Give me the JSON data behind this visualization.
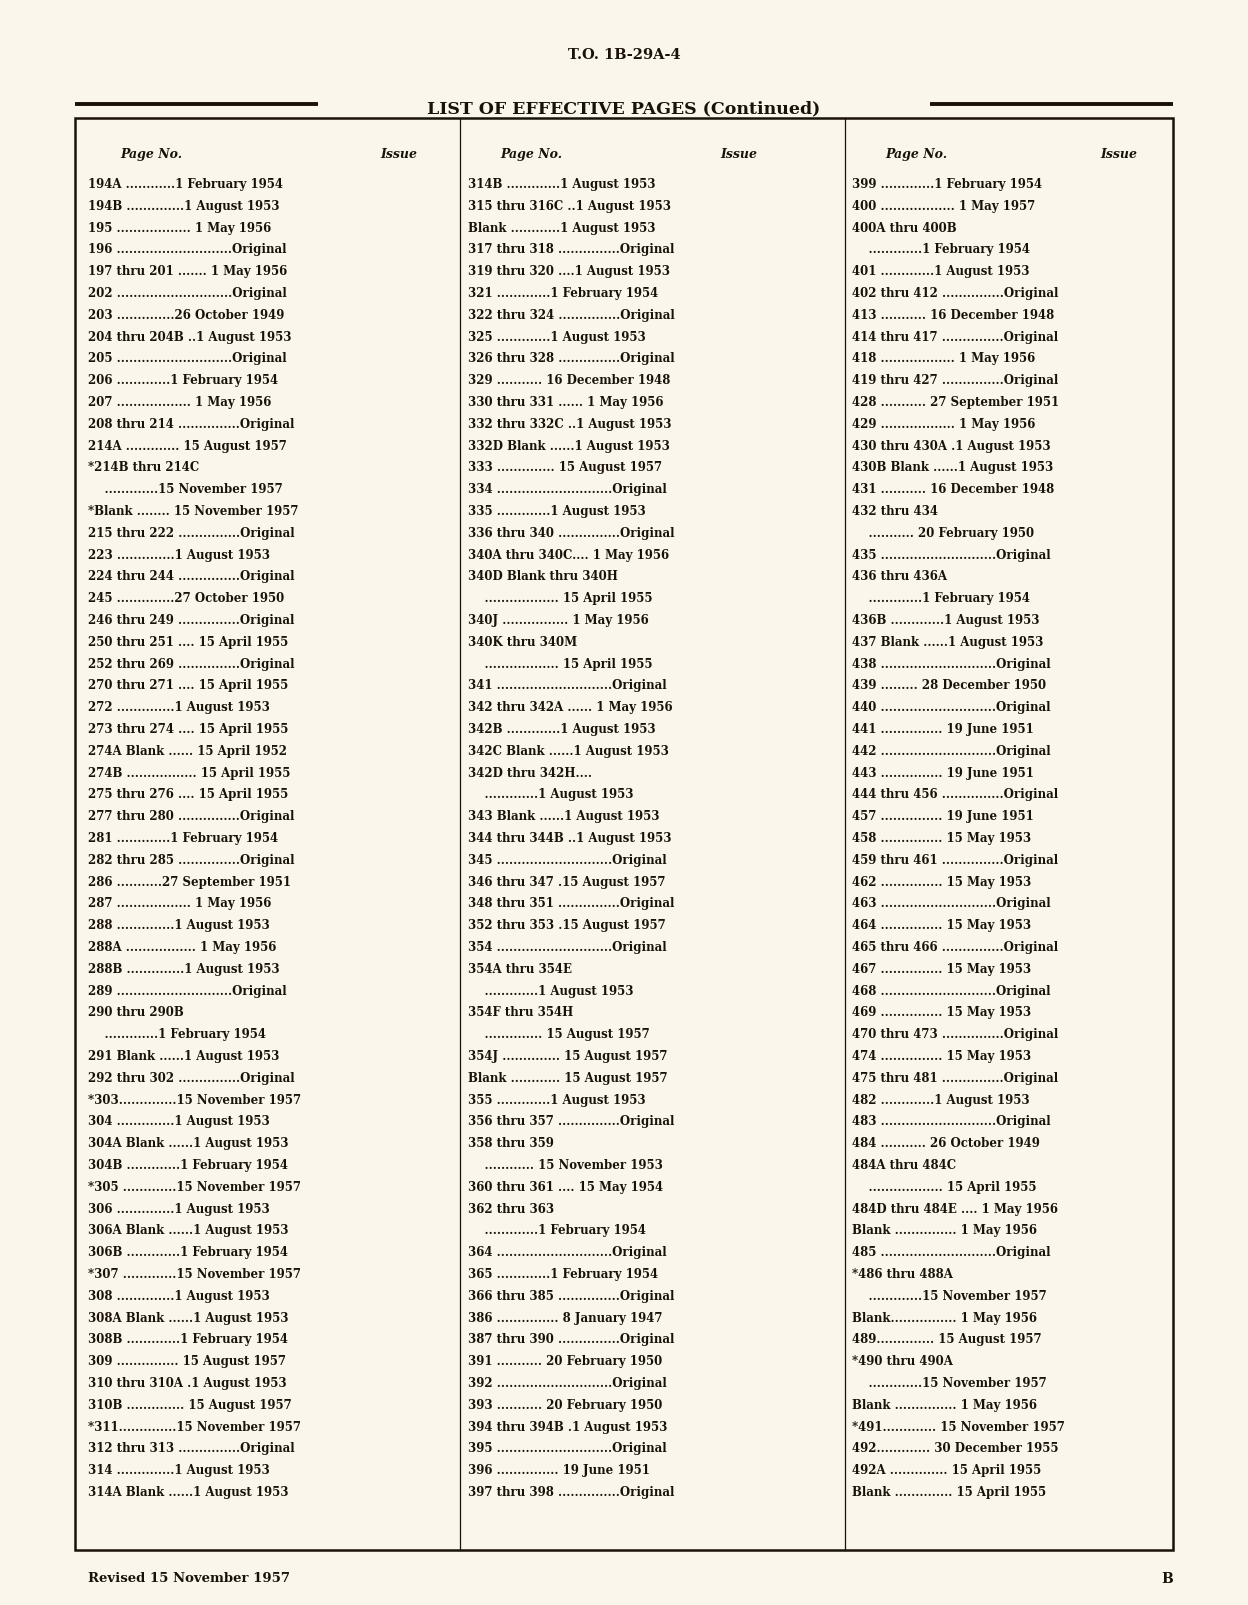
{
  "bg_color": "#faf6ec",
  "top_label": "T.O. 1B-29A-4",
  "title": "LIST OF EFFECTIVE PAGES (Continued)",
  "bottom_left": "Revised 15 November 1957",
  "bottom_right": "B",
  "col1_entries": [
    "194A ............1 February 1954",
    "194B ..............1 August 1953",
    "195 .................. 1 May 1956",
    "196 ............................Original",
    "197 thru 201 ....... 1 May 1956",
    "202 ............................Original",
    "203 ..............26 October 1949",
    "204 thru 204B ..1 August 1953",
    "205 ............................Original",
    "206 .............1 February 1954",
    "207 .................. 1 May 1956",
    "208 thru 214 ...............Original",
    "214A ............. 15 August 1957",
    "*214B thru 214C",
    "    .............15 November 1957",
    "*Blank ........ 15 November 1957",
    "215 thru 222 ...............Original",
    "223 ..............1 August 1953",
    "224 thru 244 ...............Original",
    "245 ..............27 October 1950",
    "246 thru 249 ...............Original",
    "250 thru 251 .... 15 April 1955",
    "252 thru 269 ...............Original",
    "270 thru 271 .... 15 April 1955",
    "272 ..............1 August 1953",
    "273 thru 274 .... 15 April 1955",
    "274A Blank ...... 15 April 1952",
    "274B ................. 15 April 1955",
    "275 thru 276 .... 15 April 1955",
    "277 thru 280 ...............Original",
    "281 .............1 February 1954",
    "282 thru 285 ...............Original",
    "286 ...........27 September 1951",
    "287 .................. 1 May 1956",
    "288 ..............1 August 1953",
    "288A ................. 1 May 1956",
    "288B ..............1 August 1953",
    "289 ............................Original",
    "290 thru 290B",
    "    .............1 February 1954",
    "291 Blank ......1 August 1953",
    "292 thru 302 ...............Original",
    "*303..............15 November 1957",
    "304 ..............1 August 1953",
    "304A Blank ......1 August 1953",
    "304B .............1 February 1954",
    "*305 .............15 November 1957",
    "306 ..............1 August 1953",
    "306A Blank ......1 August 1953",
    "306B .............1 February 1954",
    "*307 .............15 November 1957",
    "308 ..............1 August 1953",
    "308A Blank ......1 August 1953",
    "308B .............1 February 1954",
    "309 ............... 15 August 1957",
    "310 thru 310A .1 August 1953",
    "310B .............. 15 August 1957",
    "*311..............15 November 1957",
    "312 thru 313 ...............Original",
    "314 ..............1 August 1953",
    "314A Blank ......1 August 1953"
  ],
  "col2_entries": [
    "314B .............1 August 1953",
    "315 thru 316C ..1 August 1953",
    "Blank ............1 August 1953",
    "317 thru 318 ...............Original",
    "319 thru 320 ....1 August 1953",
    "321 .............1 February 1954",
    "322 thru 324 ...............Original",
    "325 .............1 August 1953",
    "326 thru 328 ...............Original",
    "329 ........... 16 December 1948",
    "330 thru 331 ...... 1 May 1956",
    "332 thru 332C ..1 August 1953",
    "332D Blank ......1 August 1953",
    "333 .............. 15 August 1957",
    "334 ............................Original",
    "335 .............1 August 1953",
    "336 thru 340 ...............Original",
    "340A thru 340C.... 1 May 1956",
    "340D Blank thru 340H",
    "    .................. 15 April 1955",
    "340J ................ 1 May 1956",
    "340K thru 340M",
    "    .................. 15 April 1955",
    "341 ............................Original",
    "342 thru 342A ...... 1 May 1956",
    "342B .............1 August 1953",
    "342C Blank ......1 August 1953",
    "342D thru 342H....",
    "    .............1 August 1953",
    "343 Blank ......1 August 1953",
    "344 thru 344B ..1 August 1953",
    "345 ............................Original",
    "346 thru 347 .15 August 1957",
    "348 thru 351 ...............Original",
    "352 thru 353 .15 August 1957",
    "354 ............................Original",
    "354A thru 354E",
    "    .............1 August 1953",
    "354F thru 354H",
    "    .............. 15 August 1957",
    "354J .............. 15 August 1957",
    "Blank ............ 15 August 1957",
    "355 .............1 August 1953",
    "356 thru 357 ...............Original",
    "358 thru 359",
    "    ............ 15 November 1953",
    "360 thru 361 .... 15 May 1954",
    "362 thru 363",
    "    .............1 February 1954",
    "364 ............................Original",
    "365 .............1 February 1954",
    "366 thru 385 ...............Original",
    "386 ............... 8 January 1947",
    "387 thru 390 ...............Original",
    "391 ........... 20 February 1950",
    "392 ............................Original",
    "393 ........... 20 February 1950",
    "394 thru 394B .1 August 1953",
    "395 ............................Original",
    "396 ............... 19 June 1951",
    "397 thru 398 ...............Original"
  ],
  "col3_entries": [
    "399 .............1 February 1954",
    "400 .................. 1 May 1957",
    "400A thru 400B",
    "    .............1 February 1954",
    "401 .............1 August 1953",
    "402 thru 412 ...............Original",
    "413 ........... 16 December 1948",
    "414 thru 417 ...............Original",
    "418 .................. 1 May 1956",
    "419 thru 427 ...............Original",
    "428 ........... 27 September 1951",
    "429 .................. 1 May 1956",
    "430 thru 430A .1 August 1953",
    "430B Blank ......1 August 1953",
    "431 ........... 16 December 1948",
    "432 thru 434",
    "    ........... 20 February 1950",
    "435 ............................Original",
    "436 thru 436A",
    "    .............1 February 1954",
    "436B .............1 August 1953",
    "437 Blank ......1 August 1953",
    "438 ............................Original",
    "439 ......... 28 December 1950",
    "440 ............................Original",
    "441 ............... 19 June 1951",
    "442 ............................Original",
    "443 ............... 19 June 1951",
    "444 thru 456 ...............Original",
    "457 ............... 19 June 1951",
    "458 ............... 15 May 1953",
    "459 thru 461 ...............Original",
    "462 ............... 15 May 1953",
    "463 ............................Original",
    "464 ............... 15 May 1953",
    "465 thru 466 ...............Original",
    "467 ............... 15 May 1953",
    "468 ............................Original",
    "469 ............... 15 May 1953",
    "470 thru 473 ...............Original",
    "474 ............... 15 May 1953",
    "475 thru 481 ...............Original",
    "482 .............1 August 1953",
    "483 ............................Original",
    "484 ........... 26 October 1949",
    "484A thru 484C",
    "    .................. 15 April 1955",
    "484D thru 484E .... 1 May 1956",
    "Blank ............... 1 May 1956",
    "485 ............................Original",
    "*486 thru 488A",
    "    .............15 November 1957",
    "Blank................ 1 May 1956",
    "489.............. 15 August 1957",
    "*490 thru 490A",
    "    .............15 November 1957",
    "Blank ............... 1 May 1956",
    "*491............. 15 November 1957",
    "492............. 30 December 1955",
    "492A .............. 15 April 1955",
    "Blank .............. 15 April 1955"
  ]
}
